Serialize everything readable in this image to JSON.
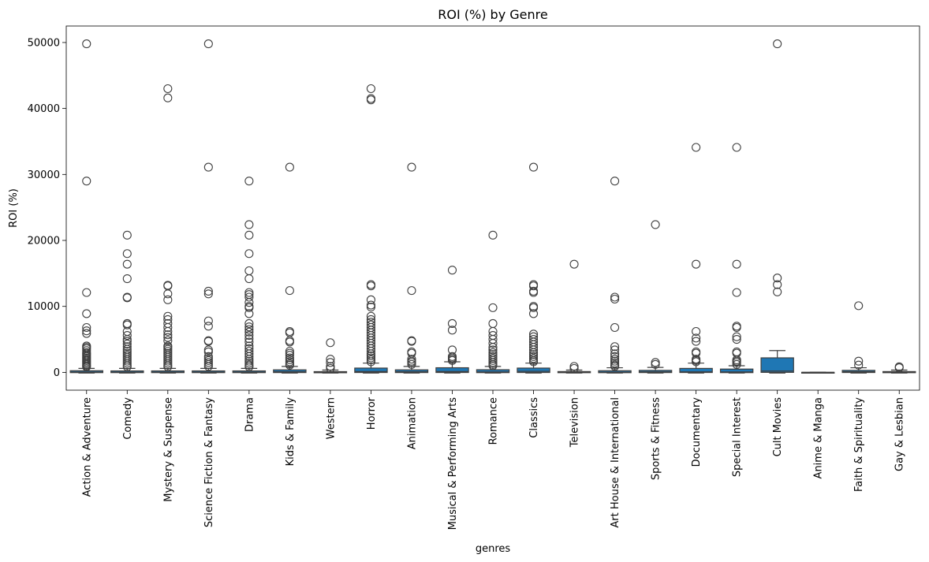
{
  "chart_data": {
    "type": "box",
    "title": "ROI (%) by Genre",
    "xlabel": "genres",
    "ylabel": "ROI (%)",
    "ylim": [
      -2700,
      52500
    ],
    "yticks": [
      0,
      10000,
      20000,
      30000,
      40000,
      50000
    ],
    "grid": false,
    "legend": "none",
    "box_color": "#1f77b4",
    "line_color": "#3f3f3f",
    "categories": [
      {
        "name": "Action & Adventure",
        "q1": -40,
        "median": 50,
        "q3": 250,
        "whisker_low": -100,
        "whisker_high": 600,
        "outliers": [
          49800,
          29000,
          12100,
          8900,
          6800,
          6300,
          5900,
          4000,
          3800,
          3600,
          3300,
          3000,
          2800,
          2600,
          2400,
          2200,
          2000,
          1800,
          1600,
          1400,
          1200,
          1000,
          850
        ]
      },
      {
        "name": "Comedy",
        "q1": -40,
        "median": 40,
        "q3": 220,
        "whisker_low": -100,
        "whisker_high": 600,
        "outliers": [
          20800,
          18000,
          16400,
          14200,
          11400,
          11300,
          7400,
          7200,
          6200,
          5600,
          5000,
          4700,
          4300,
          3900,
          3500,
          3200,
          2900,
          2600,
          2300,
          2000,
          1700,
          1400,
          1100,
          850
        ]
      },
      {
        "name": "Mystery & Suspense",
        "q1": -40,
        "median": 40,
        "q3": 220,
        "whisker_low": -100,
        "whisker_high": 600,
        "outliers": [
          43000,
          41600,
          13200,
          13100,
          11900,
          11000,
          8500,
          8000,
          7400,
          6800,
          6200,
          5700,
          5300,
          4800,
          4000,
          3800,
          3500,
          3200,
          2900,
          2600,
          2300,
          2000,
          1700,
          1400,
          1100,
          850
        ]
      },
      {
        "name": "Science Fiction & Fantasy",
        "q1": -40,
        "median": 40,
        "q3": 220,
        "whisker_low": -100,
        "whisker_high": 600,
        "outliers": [
          49800,
          31100,
          12300,
          11900,
          7800,
          7000,
          4800,
          4700,
          3400,
          3100,
          2400,
          2100,
          1800,
          1500,
          1200,
          900
        ]
      },
      {
        "name": "Drama",
        "q1": -40,
        "median": 40,
        "q3": 220,
        "whisker_low": -100,
        "whisker_high": 600,
        "outliers": [
          29000,
          22400,
          20800,
          18000,
          15400,
          14200,
          12100,
          11800,
          11400,
          10600,
          10000,
          9800,
          8900,
          7400,
          6900,
          6500,
          6100,
          5600,
          5100,
          4600,
          4000,
          3600,
          3200,
          2800,
          2400,
          2000,
          1700,
          1400,
          1100,
          850
        ]
      },
      {
        "name": "Kids & Family",
        "q1": -30,
        "median": 90,
        "q3": 380,
        "whisker_low": -100,
        "whisker_high": 900,
        "outliers": [
          31100,
          12400,
          6200,
          6000,
          4800,
          4600,
          3200,
          2900,
          2600,
          2200,
          1900,
          1600,
          1300,
          1100
        ]
      },
      {
        "name": "Western",
        "q1": -60,
        "median": 10,
        "q3": 110,
        "whisker_low": -100,
        "whisker_high": 350,
        "outliers": [
          4500,
          2000,
          1500,
          900,
          600
        ]
      },
      {
        "name": "Horror",
        "q1": -20,
        "median": 120,
        "q3": 650,
        "whisker_low": -100,
        "whisker_high": 1400,
        "outliers": [
          43000,
          41500,
          41300,
          13300,
          13100,
          11000,
          10200,
          9900,
          8500,
          8000,
          7600,
          7200,
          6800,
          6400,
          6000,
          5600,
          5200,
          4800,
          4400,
          4000,
          3600,
          3200,
          2800,
          2500,
          2200,
          1900,
          1600
        ]
      },
      {
        "name": "Animation",
        "q1": -30,
        "median": 100,
        "q3": 380,
        "whisker_low": -100,
        "whisker_high": 900,
        "outliers": [
          31100,
          12400,
          4800,
          4700,
          3100,
          2900,
          2000,
          1700,
          1500,
          1200
        ]
      },
      {
        "name": "Musical & Performing Arts",
        "q1": -20,
        "median": 120,
        "q3": 700,
        "whisker_low": -100,
        "whisker_high": 1600,
        "outliers": [
          15500,
          7400,
          6400,
          3400,
          2400,
          2200,
          2000,
          1800
        ]
      },
      {
        "name": "Romance",
        "q1": -40,
        "median": 60,
        "q3": 400,
        "whisker_low": -100,
        "whisker_high": 900,
        "outliers": [
          20800,
          9800,
          7400,
          6200,
          5600,
          5000,
          4400,
          3800,
          3400,
          3000,
          2700,
          2400,
          2100,
          1800,
          1500,
          1200,
          1000
        ]
      },
      {
        "name": "Classics",
        "q1": -20,
        "median": 150,
        "q3": 650,
        "whisker_low": -100,
        "whisker_high": 1400,
        "outliers": [
          31100,
          13300,
          13100,
          12300,
          12100,
          10000,
          9800,
          8900,
          5800,
          5400,
          5000,
          4600,
          4200,
          3800,
          3400,
          3000,
          2700,
          2400,
          2100,
          1800,
          1600
        ]
      },
      {
        "name": "Television",
        "q1": -50,
        "median": 20,
        "q3": 120,
        "whisker_low": -100,
        "whisker_high": 350,
        "outliers": [
          16400,
          900,
          600
        ]
      },
      {
        "name": "Art House & International",
        "q1": -50,
        "median": 30,
        "q3": 250,
        "whisker_low": -100,
        "whisker_high": 700,
        "outliers": [
          29000,
          11400,
          11100,
          6800,
          3900,
          3400,
          2800,
          2400,
          2000,
          1700,
          1400,
          1100,
          900
        ]
      },
      {
        "name": "Sports & Fitness",
        "q1": -30,
        "median": 80,
        "q3": 300,
        "whisker_low": -100,
        "whisker_high": 750,
        "outliers": [
          22400,
          1500,
          1200
        ]
      },
      {
        "name": "Documentary",
        "q1": -20,
        "median": 80,
        "q3": 600,
        "whisker_low": -100,
        "whisker_high": 1400,
        "outliers": [
          34100,
          16400,
          6200,
          5200,
          4700,
          3100,
          2900,
          2000,
          1800,
          1600
        ]
      },
      {
        "name": "Special Interest",
        "q1": -40,
        "median": 70,
        "q3": 500,
        "whisker_low": -100,
        "whisker_high": 1000,
        "outliers": [
          34100,
          16400,
          12100,
          7000,
          6800,
          5400,
          5000,
          3100,
          2900,
          1900,
          1700,
          1500,
          1200
        ]
      },
      {
        "name": "Cult Movies",
        "q1": 0,
        "median": 200,
        "q3": 2200,
        "whisker_low": -100,
        "whisker_high": 3300,
        "outliers": [
          49800,
          14300,
          13300,
          12200
        ]
      },
      {
        "name": "Anime & Manga",
        "q1": 0,
        "median": 0,
        "q3": 0,
        "whisker_low": 0,
        "whisker_high": 0,
        "outliers": []
      },
      {
        "name": "Faith & Spirituality",
        "q1": -20,
        "median": 90,
        "q3": 300,
        "whisker_low": -100,
        "whisker_high": 700,
        "outliers": [
          10100,
          1700,
          1100
        ]
      },
      {
        "name": "Gay & Lesbian",
        "q1": -50,
        "median": 20,
        "q3": 120,
        "whisker_low": -100,
        "whisker_high": 350,
        "outliers": [
          850,
          700
        ]
      }
    ]
  }
}
